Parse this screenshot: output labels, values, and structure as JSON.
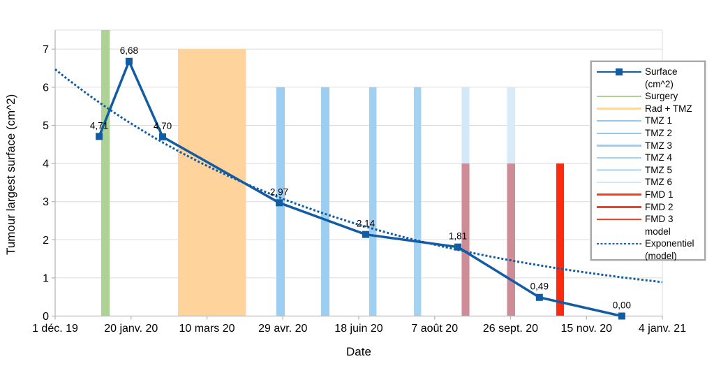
{
  "chart_data": {
    "type": "line",
    "x_axis": {
      "label": "Date",
      "range_days": [
        0,
        400
      ],
      "ticks": [
        {
          "day": 0,
          "label": "1 déc. 19"
        },
        {
          "day": 50,
          "label": "20 janv. 20"
        },
        {
          "day": 100,
          "label": "10 mars 20"
        },
        {
          "day": 150,
          "label": "29 avr. 20"
        },
        {
          "day": 200,
          "label": "18 juin 20"
        },
        {
          "day": 250,
          "label": "7 août 20"
        },
        {
          "day": 300,
          "label": "26 sept. 20"
        },
        {
          "day": 350,
          "label": "15 nov. 20"
        },
        {
          "day": 400,
          "label": "4 janv. 21"
        }
      ]
    },
    "y_axis": {
      "label": "Tumour largest surface (cm^2)",
      "ticks": [
        0,
        1,
        2,
        3,
        4,
        5,
        6,
        7
      ],
      "range": [
        0,
        7.5
      ],
      "grid": true
    },
    "series": [
      {
        "name": "Surface (cm^2)",
        "type": "line-markers",
        "color": "#115CA3",
        "x_days": [
          29,
          48.7,
          70.8,
          147.6,
          204.6,
          265.3,
          319,
          373.3
        ],
        "values": [
          4.71,
          6.68,
          4.7,
          2.97,
          2.14,
          1.81,
          0.49,
          0.0
        ],
        "labels": [
          "4,71",
          "6,68",
          "4,70",
          "2,97",
          "2,14",
          "1,81",
          "0,49",
          "0,00"
        ]
      },
      {
        "name": "Exponentiel (model)",
        "type": "exponential-trend",
        "color": "#115CA3",
        "start_value": 6.47,
        "end_value": 0.89
      }
    ],
    "treatment_bars": [
      {
        "name": "Surgery",
        "t0": 30.3,
        "t1": 36.0,
        "v0": 0,
        "v1": 7.5,
        "color": "#AED295"
      },
      {
        "name": "Rad + TMZ",
        "t0": 80.9,
        "t1": 125.7,
        "v0": 0,
        "v1": 7,
        "color": "#FFD39B"
      },
      {
        "name": "TMZ 1",
        "t0": 145.7,
        "t1": 151.3,
        "v0": 0,
        "v1": 6,
        "color": "#9CCEF1"
      },
      {
        "name": "TMZ 2",
        "t0": 175.2,
        "t1": 180.7,
        "v0": 0,
        "v1": 6,
        "color": "#9CCEF1"
      },
      {
        "name": "TMZ 3",
        "t0": 206.9,
        "t1": 211.7,
        "v0": 0,
        "v1": 6,
        "color": "#9FD0F1"
      },
      {
        "name": "TMZ 4",
        "t0": 236.3,
        "t1": 241.1,
        "v0": 0,
        "v1": 6,
        "color": "#A3D2F2"
      },
      {
        "name": "TMZ 5",
        "t0": 267.8,
        "t1": 272.9,
        "v0": 0,
        "v1": 6,
        "color": "#D3E8F8"
      },
      {
        "name": "TMZ 6",
        "t0": 297.7,
        "t1": 303.0,
        "v0": 0,
        "v1": 6,
        "color": "#D9EBF9"
      },
      {
        "name": "FMD 1",
        "t0": 267.8,
        "t1": 272.9,
        "v0": 0,
        "v1": 4,
        "color": "#CE8C96"
      },
      {
        "name": "FMD 2",
        "t0": 297.7,
        "t1": 303.0,
        "v0": 0,
        "v1": 4,
        "color": "#CE8C96"
      },
      {
        "name": "FMD 3",
        "t0": 330.1,
        "t1": 335.2,
        "v0": 0,
        "v1": 4,
        "color": "#FF2A0E"
      }
    ],
    "legend_position": "right-overlay"
  },
  "legend": {
    "entries": [
      {
        "label": "Surface\n(cm^2)",
        "style": "line-marker",
        "color": "#115CA3"
      },
      {
        "label": "Surgery",
        "style": "line",
        "color": "#AED295"
      },
      {
        "label": "Rad + TMZ",
        "style": "line",
        "color": "#FBD7A2"
      },
      {
        "label": "TMZ 1",
        "style": "line",
        "color": "#93C9EF"
      },
      {
        "label": "TMZ 2",
        "style": "line",
        "color": "#93C9EF"
      },
      {
        "label": "TMZ 3",
        "style": "line",
        "color": "#9CCEF1"
      },
      {
        "label": "TMZ 4",
        "style": "line",
        "color": "#A5D3F3"
      },
      {
        "label": "TMZ 5",
        "style": "line",
        "color": "#C6E2F7"
      },
      {
        "label": "TMZ 6",
        "style": "line",
        "color": "#D2E8F9"
      },
      {
        "label": "FMD 1",
        "style": "line",
        "color": "#FB3A1E"
      },
      {
        "label": "FMD 2",
        "style": "line",
        "color": "#FB3A1E"
      },
      {
        "label": "FMD 3",
        "style": "line",
        "color": "#FB3A1E"
      },
      {
        "label": "model",
        "style": "none",
        "color": ""
      },
      {
        "label": "Exponentiel\n(model)",
        "style": "dashed",
        "color": "#1565AE"
      }
    ]
  },
  "colors": {
    "series_blue": "#115CA3",
    "grid": "#DCDCDC",
    "axis": "#B8B8B8",
    "label_text": "#000000"
  }
}
